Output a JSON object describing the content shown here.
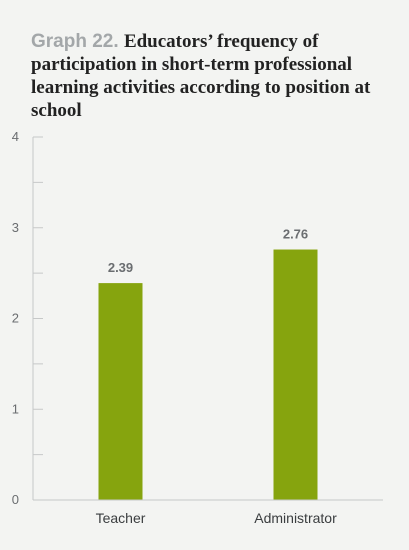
{
  "chart_data": {
    "type": "bar",
    "title_prefix": "Graph 22.",
    "title": "Educators’ frequency of participation in short-term professional learning activities according to position at school",
    "categories": [
      "Teacher",
      "Administrator"
    ],
    "values": [
      2.39,
      2.76
    ],
    "data_labels": [
      "2.39",
      "2.76"
    ],
    "ylim": [
      0,
      4
    ],
    "yticks": [
      0,
      1,
      2,
      3,
      4
    ],
    "ytick_labels": [
      "0",
      "1",
      "2",
      "3",
      "4"
    ],
    "minor_ticks": true,
    "grid": false,
    "bar_color": "#86a40e",
    "axis_color": "#c6c8c8",
    "xlabel": "",
    "ylabel": ""
  }
}
